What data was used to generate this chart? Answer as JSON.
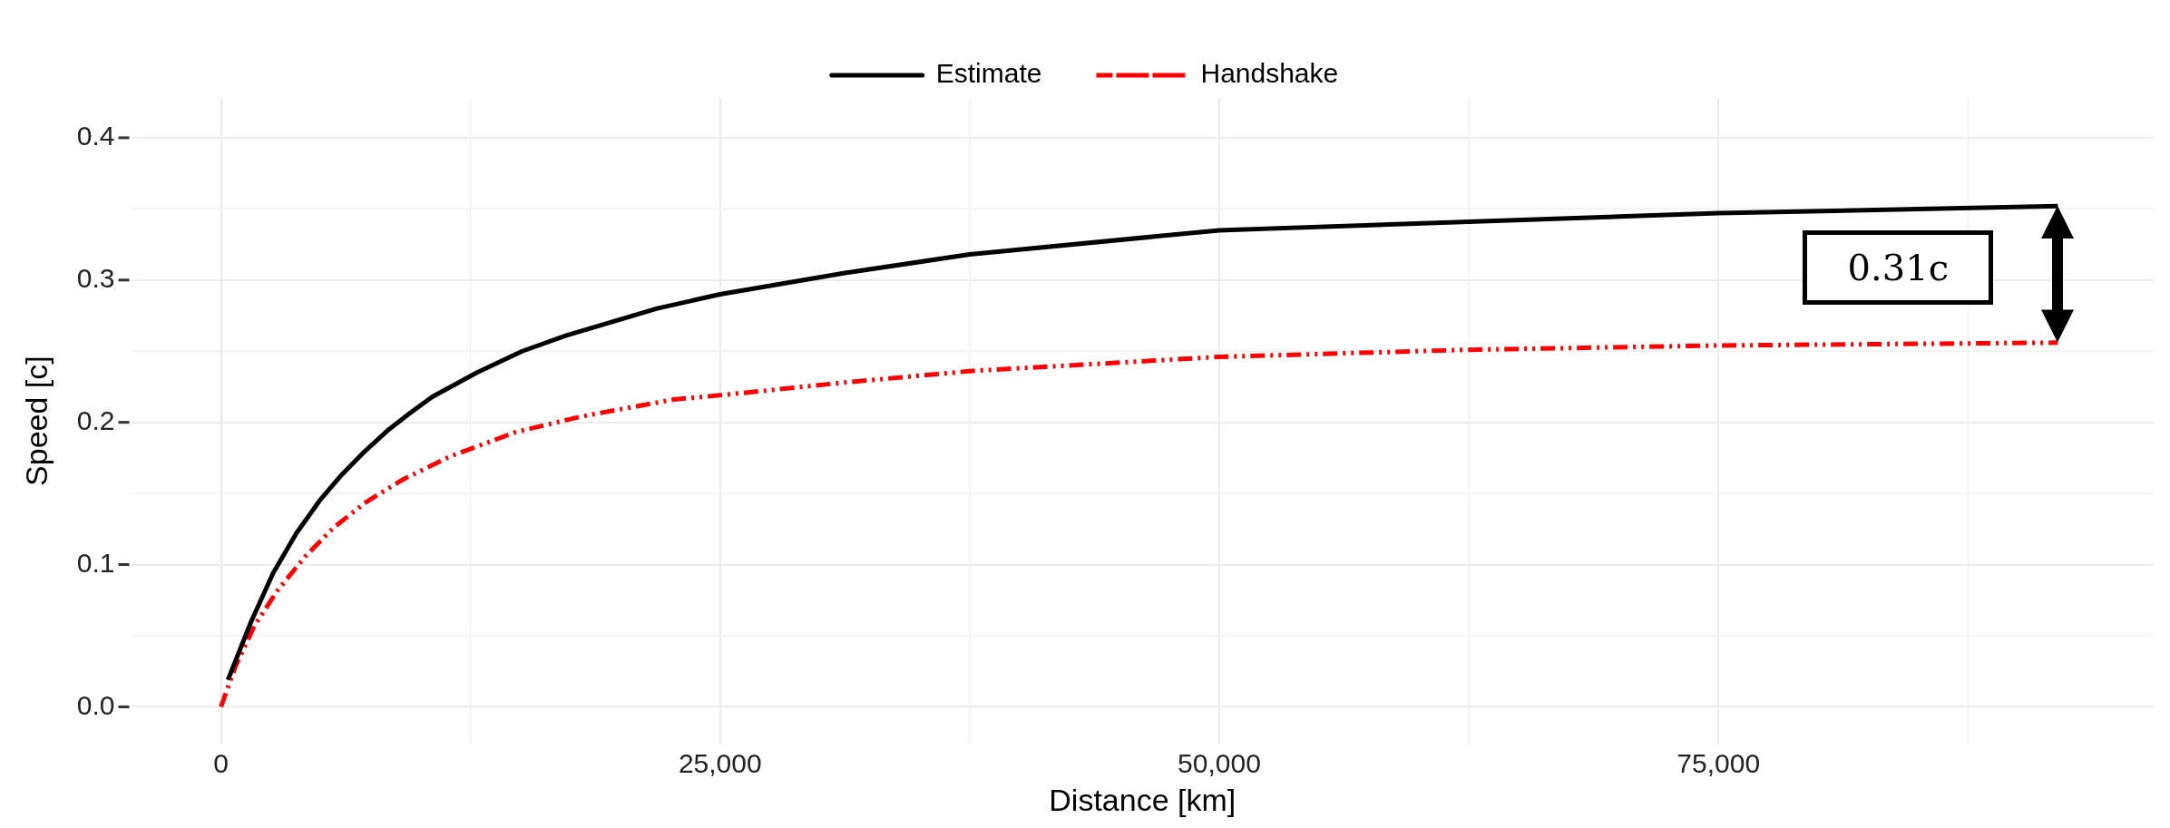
{
  "chart_data": {
    "type": "line",
    "xlabel": "Distance [km]",
    "ylabel": "Speed [c]",
    "xlim": [
      -4500,
      96800
    ],
    "ylim": [
      -0.026,
      0.428
    ],
    "xticks": [
      {
        "value": 0,
        "label": "0"
      },
      {
        "value": 25000,
        "label": "25,000"
      },
      {
        "value": 50000,
        "label": "50,000"
      },
      {
        "value": 75000,
        "label": "75,000"
      }
    ],
    "yticks": [
      {
        "value": 0,
        "label": "0.0"
      },
      {
        "value": 0.1,
        "label": "0.1"
      },
      {
        "value": 0.2,
        "label": "0.2"
      },
      {
        "value": 0.3,
        "label": "0.3"
      },
      {
        "value": 0.4,
        "label": "0.4"
      }
    ],
    "grid": true,
    "legend": "top",
    "marker": "none",
    "series": [
      {
        "name": "Estimate",
        "color": "#000000",
        "line_style": "solid",
        "x": [
          350,
          1516,
          2612,
          3778,
          4944,
          6040,
          7160,
          8326,
          9422,
          10588,
          12826,
          15090,
          17300,
          21850,
          25000,
          31250,
          37500,
          50000,
          62500,
          75000,
          92000
        ],
        "values": [
          0.019,
          0.06,
          0.094,
          0.122,
          0.145,
          0.163,
          0.179,
          0.194,
          0.206,
          0.218,
          0.235,
          0.25,
          0.261,
          0.28,
          0.29,
          0.305,
          0.318,
          0.335,
          0.341,
          0.347,
          0.352
        ]
      },
      {
        "name": "Handshake",
        "color": "#ff0000",
        "line_style": "dashed",
        "x": [
          0,
          746,
          1679,
          2845,
          4244,
          5644,
          7276,
          9142,
          11474,
          14739,
          18004,
          22668,
          25000,
          31250,
          37500,
          50000,
          62500,
          75000,
          92000
        ],
        "values": [
          0,
          0.029,
          0.057,
          0.082,
          0.106,
          0.126,
          0.144,
          0.16,
          0.176,
          0.193,
          0.204,
          0.216,
          0.219,
          0.228,
          0.236,
          0.246,
          0.251,
          0.254,
          0.256
        ]
      }
    ],
    "annotations": [
      "0.31c"
    ]
  }
}
